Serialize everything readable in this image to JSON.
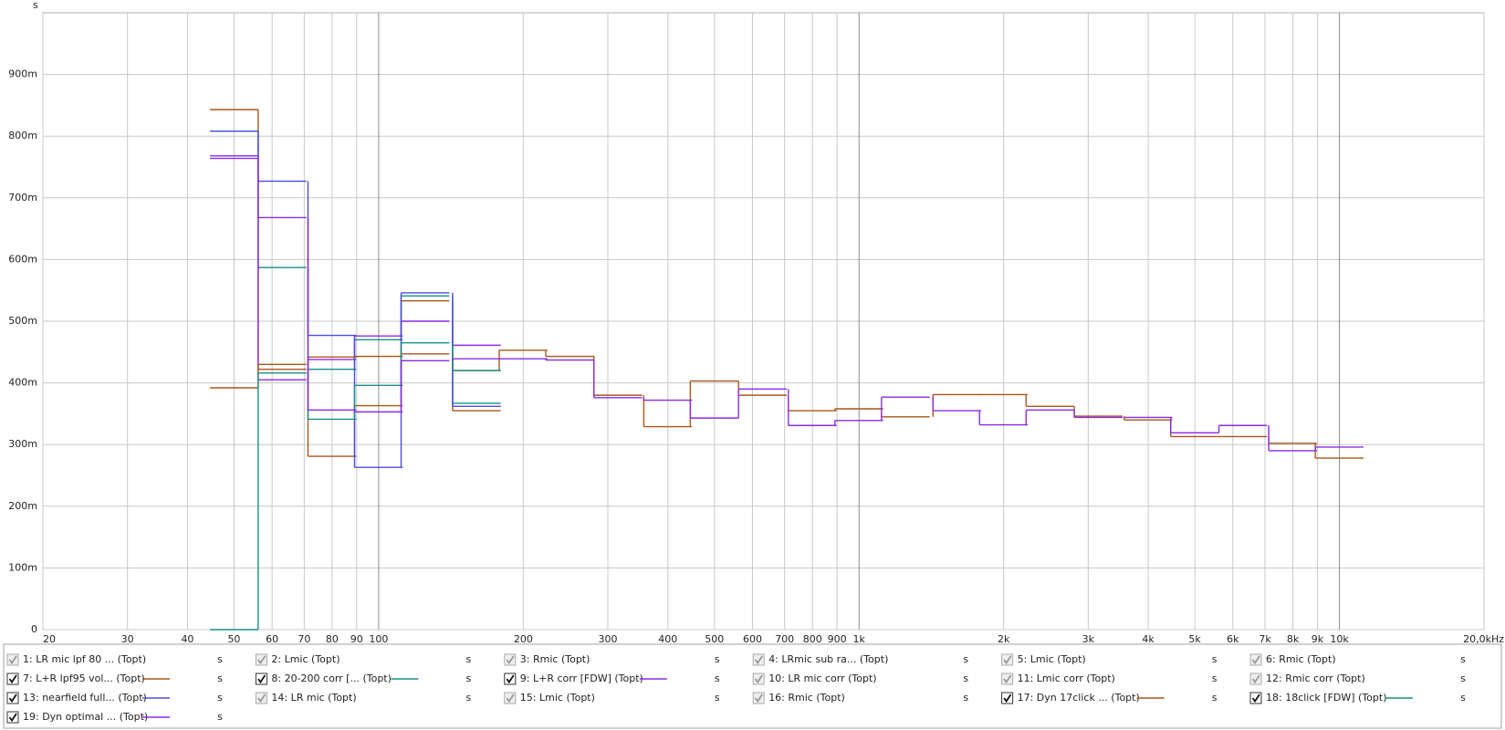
{
  "chart_data": {
    "type": "step",
    "y_unit": "s",
    "xscale": "log",
    "xlim": [
      20,
      20000
    ],
    "ylim": [
      0,
      1
    ],
    "grid": true,
    "xticks": [
      20,
      30,
      40,
      50,
      60,
      70,
      80,
      90,
      100,
      200,
      300,
      400,
      500,
      600,
      700,
      800,
      900,
      {
        "value": 1000,
        "label": "1k"
      },
      {
        "value": 2000,
        "label": "2k"
      },
      {
        "value": 3000,
        "label": "3k"
      },
      {
        "value": 4000,
        "label": "4k"
      },
      {
        "value": 5000,
        "label": "5k"
      },
      {
        "value": 6000,
        "label": "6k"
      },
      {
        "value": 7000,
        "label": "7k"
      },
      {
        "value": 8000,
        "label": "8k"
      },
      {
        "value": 9000,
        "label": "9k"
      },
      {
        "value": 10000,
        "label": "10k"
      },
      {
        "value": 20000,
        "label": "20,0kHz"
      }
    ],
    "yticks": [
      0,
      {
        "value": 0.1,
        "label": "100m"
      },
      {
        "value": 0.2,
        "label": "200m"
      },
      {
        "value": 0.3,
        "label": "300m"
      },
      {
        "value": 0.4,
        "label": "400m"
      },
      {
        "value": 0.5,
        "label": "500m"
      },
      {
        "value": 0.6,
        "label": "600m"
      },
      {
        "value": 0.7,
        "label": "700m"
      },
      {
        "value": 0.8,
        "label": "800m"
      },
      {
        "value": 0.9,
        "label": "900m"
      }
    ],
    "series": [
      {
        "name": "1: LR mic lpf 80 ... (Topt)",
        "unit": "s",
        "checked": true,
        "visible": false
      },
      {
        "name": "2: Lmic (Topt)",
        "unit": "s",
        "checked": true,
        "visible": false
      },
      {
        "name": "3: Rmic (Topt)",
        "unit": "s",
        "checked": true,
        "visible": false
      },
      {
        "name": "4: LRmic sub ra... (Topt)",
        "unit": "s",
        "checked": true,
        "visible": false
      },
      {
        "name": "5: Lmic (Topt)",
        "unit": "s",
        "checked": true,
        "visible": false
      },
      {
        "name": "6: Rmic (Topt)",
        "unit": "s",
        "checked": true,
        "visible": false
      },
      {
        "name": "7: L+R lpf95 vol... (Topt)",
        "unit": "s",
        "checked": true,
        "visible": true,
        "color": "#a8561c",
        "x": [
          50,
          63,
          80,
          100,
          125,
          160
        ],
        "values": [
          0.843,
          0.422,
          0.281,
          0.363,
          0.533,
          0.355
        ]
      },
      {
        "name": "8: 20-200 corr [... (Topt)",
        "unit": "s",
        "checked": true,
        "visible": true,
        "color": "#178f86",
        "x": [
          50,
          63,
          80,
          100,
          125,
          160
        ],
        "values": [
          0.808,
          0.587,
          0.422,
          0.47,
          0.541,
          0.367
        ]
      },
      {
        "name": "9: L+R corr [FDW] (Topt)",
        "unit": "s",
        "checked": true,
        "visible": true,
        "color": "#8a2be2",
        "x": [
          50,
          63,
          80,
          100,
          125,
          160
        ],
        "values": [
          0.768,
          0.405,
          0.438,
          0.476,
          0.5,
          0.461
        ]
      },
      {
        "name": "10: LR mic corr (Topt)",
        "unit": "s",
        "checked": true,
        "visible": false
      },
      {
        "name": "11: Lmic corr (Topt)",
        "unit": "s",
        "checked": true,
        "visible": false
      },
      {
        "name": "12: Rmic corr (Topt)",
        "unit": "s",
        "checked": true,
        "visible": false
      },
      {
        "name": "13: nearfield full... (Topt)",
        "unit": "s",
        "checked": true,
        "visible": true,
        "color": "#4b4be0",
        "x": [
          50,
          63,
          80,
          100,
          125,
          160
        ],
        "values": [
          0.808,
          0.727,
          0.477,
          0.263,
          0.546,
          0.362
        ]
      },
      {
        "name": "14: LR mic (Topt)",
        "unit": "s",
        "checked": true,
        "visible": false
      },
      {
        "name": "15: Lmic (Topt)",
        "unit": "s",
        "checked": true,
        "visible": false
      },
      {
        "name": "16: Rmic (Topt)",
        "unit": "s",
        "checked": true,
        "visible": false
      },
      {
        "name": "17: Dyn 17click ... (Topt)",
        "unit": "s",
        "checked": true,
        "visible": true,
        "color": "#a8561c",
        "x": [
          50,
          63,
          80,
          100,
          125,
          160,
          200,
          250,
          315,
          400,
          500,
          630,
          800,
          1000,
          1250,
          1600,
          2000,
          2500,
          3150,
          4000,
          5000,
          6300,
          8000,
          10000
        ],
        "values": [
          0.392,
          0.43,
          0.442,
          0.443,
          0.447,
          0.42,
          0.453,
          0.443,
          0.38,
          0.329,
          0.403,
          0.38,
          0.355,
          0.358,
          0.345,
          0.381,
          0.381,
          0.362,
          0.346,
          0.34,
          0.313,
          0.313,
          0.302,
          0.278
        ]
      },
      {
        "name": "18: 18click [FDW] (Topt)",
        "unit": "s",
        "checked": true,
        "visible": true,
        "color": "#178f86",
        "x": [
          50,
          63,
          80,
          100,
          125,
          160
        ],
        "values": [
          0,
          0.416,
          0.341,
          0.396,
          0.465,
          0.42
        ]
      },
      {
        "name": "19: Dyn optimal ... (Topt)",
        "unit": "s",
        "checked": true,
        "visible": true,
        "color": "#8a2be2",
        "x": [
          50,
          63,
          80,
          100,
          125,
          160,
          200,
          250,
          315,
          400,
          500,
          630,
          800,
          1000,
          1250,
          1600,
          2000,
          2500,
          3150,
          4000,
          5000,
          6300,
          8000,
          10000
        ],
        "values": [
          0.764,
          0.668,
          0.356,
          0.353,
          0.436,
          0.439,
          0.439,
          0.437,
          0.376,
          0.372,
          0.343,
          0.39,
          0.331,
          0.339,
          0.377,
          0.355,
          0.332,
          0.356,
          0.344,
          0.344,
          0.319,
          0.331,
          0.29,
          0.296
        ]
      }
    ]
  }
}
